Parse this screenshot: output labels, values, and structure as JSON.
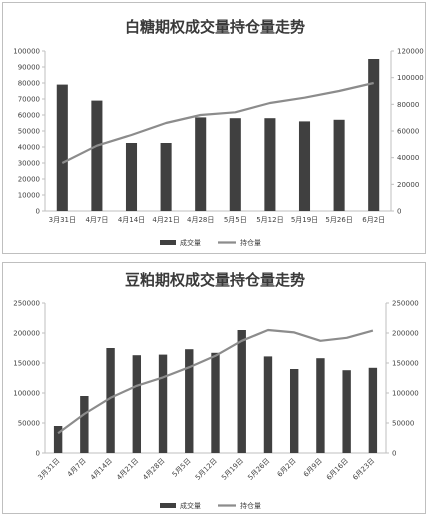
{
  "chart_data": [
    {
      "type": "bar",
      "title": "白糖期权成交量持仓量走势",
      "categories": [
        "3月31日",
        "4月7日",
        "4月14日",
        "4月21日",
        "4月28日",
        "5月5日",
        "5月12日",
        "5月19日",
        "5月26日",
        "6月2日"
      ],
      "series": [
        {
          "name": "成交量",
          "type": "bar",
          "axis": "left",
          "color": "#404040",
          "values": [
            79000,
            69000,
            42500,
            42500,
            58500,
            58000,
            58000,
            56000,
            57000,
            95000
          ]
        },
        {
          "name": "持仓量",
          "type": "line",
          "axis": "right",
          "color": "#8c8c8c",
          "values": [
            36000,
            49000,
            57000,
            66000,
            72000,
            74000,
            81000,
            85000,
            90000,
            96000
          ]
        }
      ],
      "ylim_left": [
        0,
        100000
      ],
      "yticks_left": [
        "0",
        "10000",
        "20000",
        "30000",
        "40000",
        "50000",
        "60000",
        "70000",
        "80000",
        "90000",
        "100000"
      ],
      "ylim_right": [
        0,
        120000
      ],
      "yticks_right": [
        "0",
        "20000",
        "40000",
        "60000",
        "80000",
        "100000",
        "120000"
      ],
      "legend_position": "bottom",
      "grid": false
    },
    {
      "type": "bar",
      "title": "豆粕期权成交量持仓量走势",
      "categories": [
        "3月31日",
        "4月7日",
        "4月14日",
        "4月21日",
        "4月28日",
        "5月5日",
        "5月12日",
        "5月19日",
        "5月26日",
        "6月2日",
        "6月9日",
        "6月16日",
        "6月23日"
      ],
      "series": [
        {
          "name": "成交量",
          "type": "bar",
          "axis": "left",
          "color": "#404040",
          "values": [
            45000,
            95000,
            175000,
            163000,
            164000,
            173000,
            167000,
            205000,
            161000,
            140000,
            158000,
            138000,
            142000
          ]
        },
        {
          "name": "持仓量",
          "type": "line",
          "axis": "right",
          "color": "#8c8c8c",
          "values": [
            33000,
            65000,
            92000,
            112000,
            126000,
            143000,
            162000,
            187000,
            205000,
            201000,
            187000,
            192000,
            204000
          ]
        }
      ],
      "ylim_left": [
        0,
        250000
      ],
      "yticks_left": [
        "0",
        "50000",
        "100000",
        "150000",
        "200000",
        "250000"
      ],
      "ylim_right": [
        0,
        250000
      ],
      "yticks_right": [
        "0",
        "50000",
        "100000",
        "150000",
        "200000",
        "250000"
      ],
      "legend_position": "bottom",
      "grid": false
    }
  ]
}
